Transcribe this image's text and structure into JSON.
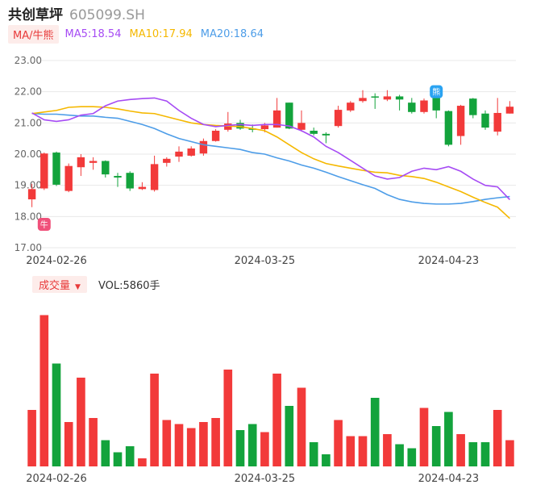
{
  "header": {
    "name": "共创草坪",
    "code": "605099.SH"
  },
  "ma_legend": {
    "tag": "MA/牛熊",
    "ma5": "MA5:18.54",
    "ma10": "MA10:17.94",
    "ma20": "MA20:18.64",
    "ma5_color": "#a64bf4",
    "ma10_color": "#f5b800",
    "ma20_color": "#4d9de8"
  },
  "volume_legend": {
    "tag": "成交量",
    "caret": "▼",
    "vol": "VOL:5860手"
  },
  "colors": {
    "up": "#f23a3a",
    "down": "#13a33c",
    "grid": "#e8e8e8"
  },
  "markers": {
    "bull": "牛",
    "bear": "熊"
  },
  "chart_data": [
    {
      "type": "candlestick",
      "ylim": [
        17.0,
        23.0
      ],
      "y_ticks": [
        "23.00",
        "22.00",
        "21.00",
        "20.00",
        "19.00",
        "18.00",
        "17.00"
      ],
      "x_tick_labels": [
        {
          "index": 2,
          "label": "2024-02-26"
        },
        {
          "index": 19,
          "label": "2024-03-25"
        },
        {
          "index": 34,
          "label": "2024-04-23"
        }
      ],
      "candles": [
        {
          "o": 18.55,
          "c": 18.88,
          "h": 19.05,
          "l": 18.3
        },
        {
          "o": 18.9,
          "c": 20.02,
          "h": 20.05,
          "l": 18.85
        },
        {
          "o": 20.05,
          "c": 19.02,
          "h": 20.08,
          "l": 18.98
        },
        {
          "o": 18.82,
          "c": 19.62,
          "h": 19.7,
          "l": 18.78
        },
        {
          "o": 19.58,
          "c": 19.9,
          "h": 20.0,
          "l": 19.3
        },
        {
          "o": 19.72,
          "c": 19.78,
          "h": 19.9,
          "l": 19.5
        },
        {
          "o": 19.78,
          "c": 19.35,
          "h": 19.8,
          "l": 19.25
        },
        {
          "o": 19.3,
          "c": 19.25,
          "h": 19.4,
          "l": 18.95
        },
        {
          "o": 19.4,
          "c": 18.9,
          "h": 19.45,
          "l": 18.82
        },
        {
          "o": 18.88,
          "c": 18.95,
          "h": 19.1,
          "l": 18.85
        },
        {
          "o": 18.85,
          "c": 19.68,
          "h": 19.95,
          "l": 18.8
        },
        {
          "o": 19.72,
          "c": 19.85,
          "h": 19.9,
          "l": 19.6
        },
        {
          "o": 19.92,
          "c": 20.08,
          "h": 20.25,
          "l": 19.75
        },
        {
          "o": 19.95,
          "c": 20.18,
          "h": 20.25,
          "l": 19.92
        },
        {
          "o": 20.02,
          "c": 20.42,
          "h": 20.5,
          "l": 19.95
        },
        {
          "o": 20.42,
          "c": 20.75,
          "h": 20.8,
          "l": 20.4
        },
        {
          "o": 20.78,
          "c": 20.98,
          "h": 21.35,
          "l": 20.72
        },
        {
          "o": 21.0,
          "c": 20.82,
          "h": 21.1,
          "l": 20.78
        },
        {
          "o": 20.82,
          "c": 20.78,
          "h": 20.95,
          "l": 20.7
        },
        {
          "o": 20.8,
          "c": 20.92,
          "h": 21.0,
          "l": 20.7
        },
        {
          "o": 20.85,
          "c": 21.4,
          "h": 21.8,
          "l": 20.85
        },
        {
          "o": 21.65,
          "c": 20.82,
          "h": 21.65,
          "l": 20.8
        },
        {
          "o": 20.78,
          "c": 21.0,
          "h": 21.4,
          "l": 20.72
        },
        {
          "o": 20.75,
          "c": 20.65,
          "h": 20.85,
          "l": 20.6
        },
        {
          "o": 20.65,
          "c": 20.6,
          "h": 20.7,
          "l": 20.35
        },
        {
          "o": 20.9,
          "c": 21.42,
          "h": 21.55,
          "l": 20.85
        },
        {
          "o": 21.4,
          "c": 21.65,
          "h": 21.7,
          "l": 21.35
        },
        {
          "o": 21.7,
          "c": 21.8,
          "h": 22.05,
          "l": 21.65
        },
        {
          "o": 21.85,
          "c": 21.82,
          "h": 21.95,
          "l": 21.45
        },
        {
          "o": 21.75,
          "c": 21.85,
          "h": 22.05,
          "l": 21.7
        },
        {
          "o": 21.85,
          "c": 21.75,
          "h": 21.9,
          "l": 21.4
        },
        {
          "o": 21.65,
          "c": 21.35,
          "h": 21.8,
          "l": 21.3
        },
        {
          "o": 21.35,
          "c": 21.72,
          "h": 21.78,
          "l": 21.3
        },
        {
          "o": 21.85,
          "c": 21.4,
          "h": 22.05,
          "l": 21.15
        },
        {
          "o": 21.38,
          "c": 20.3,
          "h": 21.4,
          "l": 20.25
        },
        {
          "o": 20.58,
          "c": 21.55,
          "h": 21.58,
          "l": 20.3
        },
        {
          "o": 21.78,
          "c": 21.25,
          "h": 21.8,
          "l": 21.15
        },
        {
          "o": 21.3,
          "c": 20.85,
          "h": 21.4,
          "l": 20.78
        },
        {
          "o": 20.72,
          "c": 21.32,
          "h": 21.8,
          "l": 20.6
        },
        {
          "o": 21.3,
          "c": 21.52,
          "h": 21.7,
          "l": 21.3
        }
      ],
      "ma5": [
        21.32,
        21.1,
        21.05,
        21.1,
        21.25,
        21.3,
        21.55,
        21.7,
        21.75,
        21.78,
        21.8,
        21.7,
        21.4,
        21.15,
        20.95,
        20.88,
        20.92,
        20.95,
        20.92,
        20.95,
        20.95,
        20.9,
        20.75,
        20.55,
        20.25,
        20.05,
        19.8,
        19.55,
        19.3,
        19.2,
        19.25,
        19.45,
        19.55,
        19.5,
        19.6,
        19.45,
        19.2,
        19.0,
        18.95,
        18.54
      ],
      "ma10": [
        21.3,
        21.35,
        21.4,
        21.5,
        21.52,
        21.52,
        21.5,
        21.45,
        21.38,
        21.32,
        21.3,
        21.2,
        21.1,
        21.0,
        20.95,
        20.92,
        20.9,
        20.88,
        20.82,
        20.75,
        20.55,
        20.3,
        20.05,
        19.85,
        19.7,
        19.62,
        19.55,
        19.48,
        19.42,
        19.4,
        19.32,
        19.28,
        19.22,
        19.1,
        18.95,
        18.8,
        18.62,
        18.45,
        18.3,
        17.94
      ],
      "ma20": [
        21.3,
        21.28,
        21.28,
        21.25,
        21.22,
        21.22,
        21.18,
        21.15,
        21.05,
        20.95,
        20.82,
        20.65,
        20.5,
        20.4,
        20.3,
        20.25,
        20.2,
        20.15,
        20.05,
        20.0,
        19.88,
        19.78,
        19.65,
        19.55,
        19.42,
        19.28,
        19.15,
        19.02,
        18.9,
        18.7,
        18.55,
        18.47,
        18.42,
        18.4,
        18.4,
        18.42,
        18.48,
        18.55,
        18.6,
        18.64
      ]
    },
    {
      "type": "bar",
      "values": [
        28,
        75,
        51,
        22,
        44,
        24,
        13,
        7,
        10,
        4,
        46,
        23,
        21,
        19,
        22,
        24,
        48,
        18,
        21,
        17,
        46,
        30,
        39,
        12,
        6,
        23,
        15,
        15,
        34,
        16,
        11,
        9,
        29,
        20,
        27,
        16,
        12,
        12,
        28,
        13
      ],
      "ylim": [
        0,
        80
      ]
    }
  ]
}
